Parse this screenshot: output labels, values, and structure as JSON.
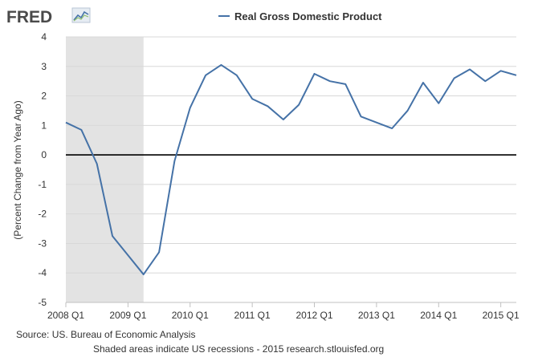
{
  "header": {
    "logo_text": "FRED",
    "logo_icon": "line-chart-icon",
    "legend_label": "Real Gross Domestic Product"
  },
  "footer": {
    "source": "Source: US. Bureau of Economic Analysis",
    "note": "Shaded areas indicate US recessions - 2015 research.stlouisfed.org"
  },
  "colors": {
    "series": "#4572a7",
    "recession": "#e3e3e3",
    "zero_line": "#000000",
    "grid": "#d8d8d8",
    "logo": "#4a4a4a"
  },
  "chart_data": {
    "type": "line",
    "ylabel": "(Percent Change from Year Ago)",
    "xlabel": "",
    "ylim": [
      -5,
      4
    ],
    "yticks": [
      4,
      3,
      2,
      1,
      0,
      -1,
      -2,
      -3,
      -4,
      -5
    ],
    "xlim": [
      "2008 Q1",
      "2015 Q2"
    ],
    "xticks": [
      "2008 Q1",
      "2009 Q1",
      "2010 Q1",
      "2011 Q1",
      "2012 Q1",
      "2013 Q1",
      "2014 Q1",
      "2015 Q1"
    ],
    "grid": true,
    "legend_position": "top",
    "recession_shading": {
      "start": "2008 Q1",
      "end": "2009 Q2"
    },
    "series": [
      {
        "name": "Real Gross Domestic Product",
        "x": [
          "2008 Q1",
          "2008 Q2",
          "2008 Q3",
          "2008 Q4",
          "2009 Q1",
          "2009 Q2",
          "2009 Q3",
          "2009 Q4",
          "2010 Q1",
          "2010 Q2",
          "2010 Q3",
          "2010 Q4",
          "2011 Q1",
          "2011 Q2",
          "2011 Q3",
          "2011 Q4",
          "2012 Q1",
          "2012 Q2",
          "2012 Q3",
          "2012 Q4",
          "2013 Q1",
          "2013 Q2",
          "2013 Q3",
          "2013 Q4",
          "2014 Q1",
          "2014 Q2",
          "2014 Q3",
          "2014 Q4",
          "2015 Q1",
          "2015 Q2"
        ],
        "values": [
          1.1,
          0.85,
          -0.3,
          -2.75,
          -3.4,
          -4.05,
          -3.3,
          -0.2,
          1.6,
          2.7,
          3.05,
          2.7,
          1.9,
          1.65,
          1.2,
          1.7,
          2.75,
          2.5,
          2.4,
          1.3,
          1.1,
          0.9,
          1.5,
          2.45,
          1.75,
          2.6,
          2.9,
          2.5,
          2.85,
          2.7
        ]
      }
    ]
  }
}
